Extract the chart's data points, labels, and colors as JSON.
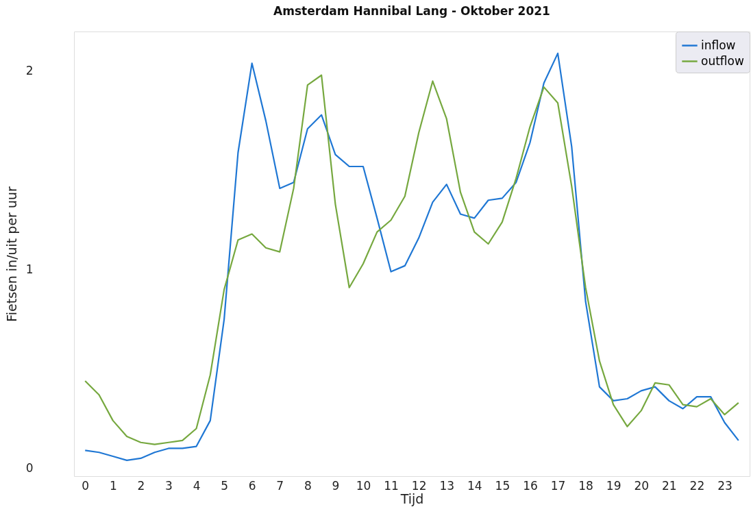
{
  "chart_data": {
    "type": "line",
    "title": "Amsterdam Hannibal Lang - Oktober 2021",
    "xlabel": "Tijd",
    "ylabel": "Fietsen in/uit per uur",
    "x": [
      0,
      0.5,
      1,
      1.5,
      2,
      2.5,
      3,
      3.5,
      4,
      4.5,
      5,
      5.5,
      6,
      6.5,
      7,
      7.5,
      8,
      8.5,
      9,
      9.5,
      10,
      10.5,
      11,
      11.5,
      12,
      12.5,
      13,
      13.5,
      14,
      14.5,
      15,
      15.5,
      16,
      16.5,
      17,
      17.5,
      18,
      18.5,
      19,
      19.5,
      20,
      20.5,
      21,
      21.5,
      22,
      22.5,
      23,
      23.5
    ],
    "series": [
      {
        "name": "inflow",
        "color": "#1f77d4",
        "values": [
          0.09,
          0.08,
          0.06,
          0.04,
          0.05,
          0.08,
          0.1,
          0.1,
          0.11,
          0.24,
          0.75,
          1.59,
          2.04,
          1.75,
          1.41,
          1.44,
          1.71,
          1.78,
          1.58,
          1.52,
          1.52,
          1.26,
          0.99,
          1.02,
          1.16,
          1.34,
          1.43,
          1.28,
          1.26,
          1.35,
          1.36,
          1.44,
          1.64,
          1.94,
          2.09,
          1.62,
          0.84,
          0.41,
          0.34,
          0.35,
          0.39,
          0.41,
          0.34,
          0.3,
          0.36,
          0.36,
          0.23,
          0.14
        ]
      },
      {
        "name": "outflow",
        "color": "#76a83f",
        "values": [
          0.44,
          0.37,
          0.24,
          0.16,
          0.13,
          0.12,
          0.13,
          0.14,
          0.2,
          0.47,
          0.9,
          1.15,
          1.18,
          1.11,
          1.09,
          1.41,
          1.93,
          1.98,
          1.33,
          0.91,
          1.03,
          1.19,
          1.25,
          1.37,
          1.69,
          1.95,
          1.76,
          1.39,
          1.19,
          1.13,
          1.24,
          1.46,
          1.72,
          1.92,
          1.84,
          1.42,
          0.91,
          0.54,
          0.32,
          0.21,
          0.29,
          0.43,
          0.42,
          0.32,
          0.31,
          0.35,
          0.27,
          0.33
        ]
      }
    ],
    "xlim": [
      -0.4,
      23.9
    ],
    "xticks": [
      0,
      1,
      2,
      3,
      4,
      5,
      6,
      7,
      8,
      9,
      10,
      11,
      12,
      13,
      14,
      15,
      16,
      17,
      18,
      19,
      20,
      21,
      22,
      23
    ],
    "ylim": [
      -0.04,
      2.2
    ],
    "yticks": [
      0,
      1,
      2
    ],
    "legend": "top right",
    "grid": false
  }
}
